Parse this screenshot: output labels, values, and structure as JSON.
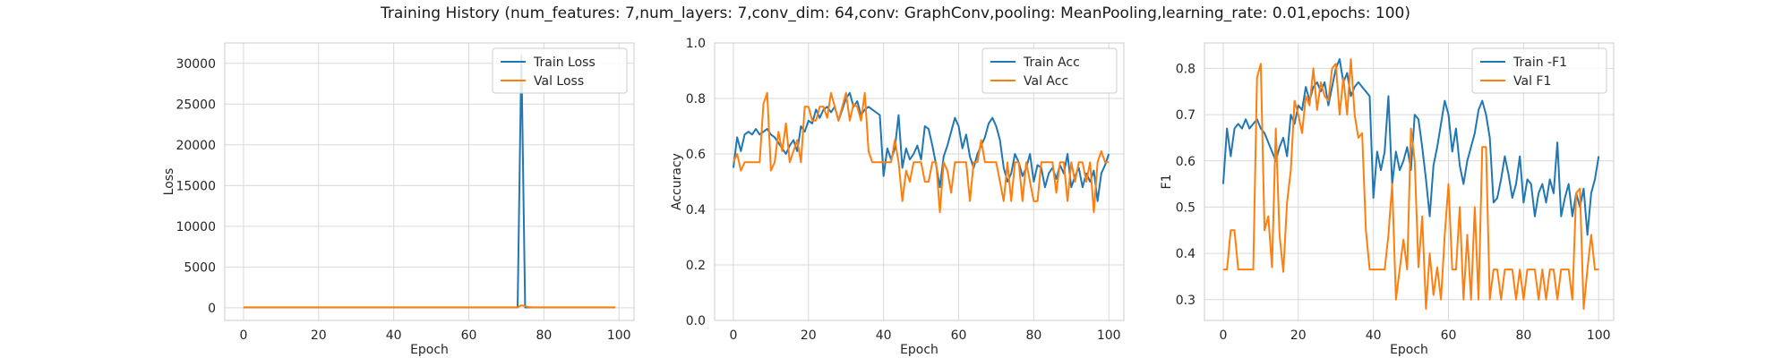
{
  "figure": {
    "title": "Training History (num_features: 7,num_layers: 7,conv_dim: 64,conv: GraphConv,pooling: MeanPooling,learning_rate: 0.01,epochs: 100)"
  },
  "colors": {
    "train": "#1f77b4",
    "val": "#ff7f0e"
  },
  "chart_data": [
    {
      "type": "line",
      "xlabel": "Epoch",
      "ylabel": "Loss",
      "xlim": [
        -5,
        104
      ],
      "ylim": [
        -1550,
        32500
      ],
      "xticks": [
        0,
        20,
        40,
        60,
        80,
        100
      ],
      "yticks": [
        0,
        5000,
        10000,
        15000,
        20000,
        25000,
        30000
      ],
      "grid": true,
      "legend": "top-right",
      "series": [
        {
          "name": "Train Loss",
          "values": [
            40,
            40,
            40,
            40,
            40,
            40,
            40,
            40,
            40,
            40,
            40,
            40,
            40,
            40,
            40,
            40,
            40,
            40,
            40,
            40,
            40,
            40,
            40,
            40,
            40,
            40,
            40,
            40,
            40,
            40,
            40,
            40,
            40,
            40,
            40,
            40,
            40,
            40,
            40,
            40,
            40,
            40,
            40,
            40,
            40,
            40,
            40,
            40,
            40,
            40,
            40,
            40,
            40,
            40,
            40,
            40,
            40,
            40,
            40,
            40,
            40,
            40,
            40,
            40,
            40,
            40,
            40,
            40,
            40,
            40,
            40,
            40,
            40,
            40,
            31000,
            40,
            40,
            40,
            40,
            40,
            40,
            40,
            40,
            40,
            40,
            40,
            40,
            40,
            40,
            40,
            40,
            40,
            40,
            40,
            40,
            40,
            40,
            40,
            40,
            40
          ]
        },
        {
          "name": "Val Loss",
          "values": [
            60,
            60,
            60,
            60,
            60,
            60,
            60,
            60,
            60,
            60,
            60,
            60,
            60,
            60,
            60,
            60,
            60,
            60,
            60,
            60,
            60,
            60,
            60,
            60,
            60,
            60,
            60,
            60,
            60,
            60,
            60,
            60,
            60,
            60,
            60,
            60,
            60,
            60,
            60,
            60,
            60,
            60,
            60,
            60,
            60,
            60,
            60,
            60,
            60,
            60,
            60,
            60,
            60,
            60,
            60,
            60,
            60,
            60,
            60,
            60,
            60,
            60,
            60,
            60,
            60,
            60,
            60,
            60,
            60,
            60,
            60,
            60,
            60,
            60,
            300,
            200,
            80,
            60,
            60,
            60,
            60,
            60,
            60,
            60,
            60,
            60,
            60,
            60,
            60,
            60,
            60,
            60,
            60,
            60,
            60,
            60,
            60,
            60,
            60,
            60
          ]
        }
      ]
    },
    {
      "type": "line",
      "xlabel": "Epoch",
      "ylabel": "Accuracy",
      "xlim": [
        -5,
        104
      ],
      "ylim": [
        0.0,
        1.0
      ],
      "xticks": [
        0,
        20,
        40,
        60,
        80,
        100
      ],
      "yticks": [
        0.0,
        0.2,
        0.4,
        0.6,
        0.8,
        1.0
      ],
      "grid": true,
      "legend": "top-right",
      "series": [
        {
          "name": "Train Acc",
          "values": [
            0.55,
            0.66,
            0.61,
            0.67,
            0.68,
            0.67,
            0.69,
            0.67,
            0.68,
            0.69,
            0.67,
            0.66,
            0.64,
            0.62,
            0.6,
            0.63,
            0.65,
            0.61,
            0.7,
            0.68,
            0.72,
            0.71,
            0.76,
            0.73,
            0.76,
            0.77,
            0.75,
            0.77,
            0.72,
            0.76,
            0.8,
            0.82,
            0.77,
            0.79,
            0.74,
            0.76,
            0.77,
            0.76,
            0.75,
            0.74,
            0.52,
            0.62,
            0.58,
            0.62,
            0.74,
            0.55,
            0.62,
            0.58,
            0.6,
            0.63,
            0.58,
            0.7,
            0.69,
            0.63,
            0.56,
            0.48,
            0.59,
            0.63,
            0.68,
            0.73,
            0.7,
            0.62,
            0.67,
            0.59,
            0.55,
            0.6,
            0.63,
            0.66,
            0.71,
            0.73,
            0.7,
            0.65,
            0.55,
            0.5,
            0.53,
            0.6,
            0.57,
            0.52,
            0.55,
            0.6,
            0.5,
            0.56,
            0.55,
            0.48,
            0.53,
            0.55,
            0.51,
            0.56,
            0.53,
            0.6,
            0.48,
            0.52,
            0.55,
            0.48,
            0.53,
            0.5,
            0.54,
            0.43,
            0.53,
            0.56,
            0.6
          ]
        },
        {
          "name": "Val Acc",
          "values": [
            0.57,
            0.6,
            0.54,
            0.57,
            0.57,
            0.57,
            0.57,
            0.57,
            0.78,
            0.82,
            0.54,
            0.57,
            0.68,
            0.61,
            0.71,
            0.57,
            0.61,
            0.65,
            0.57,
            0.77,
            0.77,
            0.72,
            0.72,
            0.77,
            0.77,
            0.73,
            0.82,
            0.77,
            0.72,
            0.77,
            0.82,
            0.72,
            0.78,
            0.77,
            0.72,
            0.82,
            0.61,
            0.57,
            0.57,
            0.57,
            0.57,
            0.57,
            0.57,
            0.65,
            0.57,
            0.43,
            0.54,
            0.5,
            0.57,
            0.57,
            0.57,
            0.5,
            0.5,
            0.57,
            0.57,
            0.39,
            0.57,
            0.54,
            0.46,
            0.57,
            0.57,
            0.57,
            0.57,
            0.43,
            0.57,
            0.57,
            0.65,
            0.57,
            0.57,
            0.57,
            0.57,
            0.5,
            0.43,
            0.57,
            0.43,
            0.57,
            0.57,
            0.43,
            0.57,
            0.5,
            0.43,
            0.43,
            0.57,
            0.57,
            0.57,
            0.57,
            0.46,
            0.57,
            0.57,
            0.43,
            0.57,
            0.5,
            0.57,
            0.57,
            0.5,
            0.57,
            0.39,
            0.57,
            0.61,
            0.57,
            0.57
          ]
        }
      ]
    },
    {
      "type": "line",
      "xlabel": "Epoch",
      "ylabel": "F1",
      "xlim": [
        -5,
        104
      ],
      "ylim": [
        0.255,
        0.855
      ],
      "xticks": [
        0,
        20,
        40,
        60,
        80,
        100
      ],
      "yticks": [
        0.3,
        0.4,
        0.5,
        0.6,
        0.7,
        0.8
      ],
      "grid": true,
      "legend": "top-right",
      "series": [
        {
          "name": "Train -F1",
          "values": [
            0.55,
            0.67,
            0.61,
            0.67,
            0.68,
            0.67,
            0.69,
            0.67,
            0.68,
            0.69,
            0.67,
            0.66,
            0.64,
            0.62,
            0.6,
            0.63,
            0.65,
            0.61,
            0.7,
            0.68,
            0.72,
            0.71,
            0.76,
            0.73,
            0.76,
            0.77,
            0.75,
            0.77,
            0.72,
            0.76,
            0.8,
            0.82,
            0.77,
            0.79,
            0.74,
            0.76,
            0.77,
            0.76,
            0.75,
            0.74,
            0.52,
            0.62,
            0.58,
            0.62,
            0.74,
            0.55,
            0.62,
            0.58,
            0.6,
            0.63,
            0.58,
            0.7,
            0.69,
            0.63,
            0.56,
            0.48,
            0.59,
            0.63,
            0.68,
            0.73,
            0.7,
            0.62,
            0.67,
            0.59,
            0.55,
            0.6,
            0.63,
            0.66,
            0.71,
            0.73,
            0.7,
            0.65,
            0.51,
            0.52,
            0.56,
            0.61,
            0.57,
            0.52,
            0.55,
            0.61,
            0.51,
            0.56,
            0.55,
            0.48,
            0.53,
            0.55,
            0.51,
            0.56,
            0.53,
            0.64,
            0.48,
            0.52,
            0.55,
            0.48,
            0.53,
            0.5,
            0.54,
            0.44,
            0.53,
            0.56,
            0.61
          ]
        },
        {
          "name": "Val F1",
          "values": [
            0.365,
            0.365,
            0.45,
            0.45,
            0.365,
            0.365,
            0.365,
            0.365,
            0.365,
            0.78,
            0.81,
            0.45,
            0.48,
            0.37,
            0.67,
            0.44,
            0.36,
            0.51,
            0.58,
            0.73,
            0.7,
            0.66,
            0.74,
            0.72,
            0.8,
            0.71,
            0.77,
            0.74,
            0.73,
            0.8,
            0.81,
            0.7,
            0.78,
            0.7,
            0.82,
            0.7,
            0.65,
            0.66,
            0.45,
            0.365,
            0.365,
            0.365,
            0.365,
            0.365,
            0.44,
            0.55,
            0.3,
            0.365,
            0.43,
            0.365,
            0.67,
            0.6,
            0.37,
            0.48,
            0.28,
            0.4,
            0.31,
            0.37,
            0.3,
            0.44,
            0.55,
            0.365,
            0.365,
            0.5,
            0.3,
            0.44,
            0.3,
            0.5,
            0.3,
            0.63,
            0.63,
            0.3,
            0.365,
            0.365,
            0.3,
            0.365,
            0.365,
            0.365,
            0.3,
            0.365,
            0.3,
            0.365,
            0.365,
            0.365,
            0.3,
            0.365,
            0.3,
            0.365,
            0.365,
            0.3,
            0.365,
            0.365,
            0.365,
            0.3,
            0.53,
            0.54,
            0.28,
            0.365,
            0.44,
            0.365,
            0.365
          ]
        }
      ]
    }
  ]
}
